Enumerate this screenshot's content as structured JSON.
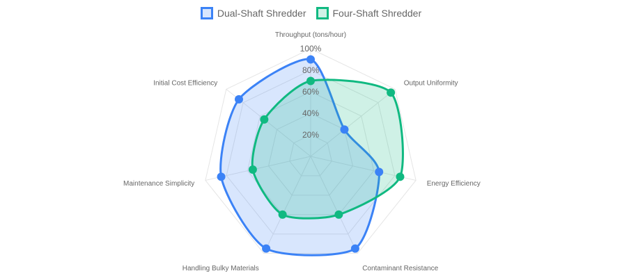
{
  "chart_data": {
    "type": "radar",
    "categories": [
      "Throughput (tons/hour)",
      "Output Uniformity",
      "Energy Efficiency",
      "Contaminant Resistance",
      "Handling Bulky Materials",
      "Maintenance Simplicity",
      "Initial Cost Efficiency"
    ],
    "series": [
      {
        "name": "Dual-Shaft Shredder",
        "values": [
          90,
          40,
          65,
          95,
          95,
          85,
          85
        ],
        "color": "#3b82f6",
        "fill": "rgba(59,130,246,0.2)"
      },
      {
        "name": "Four-Shaft Shredder",
        "values": [
          70,
          95,
          85,
          60,
          60,
          55,
          55
        ],
        "color": "#10b981",
        "fill": "rgba(16,185,129,0.2)"
      }
    ],
    "rlim": [
      0,
      100
    ],
    "ticks": [
      "20%",
      "40%",
      "60%",
      "80%",
      "100%"
    ],
    "tick_values": [
      20,
      40,
      60,
      80,
      100
    ],
    "grid": true,
    "legend": "top"
  }
}
